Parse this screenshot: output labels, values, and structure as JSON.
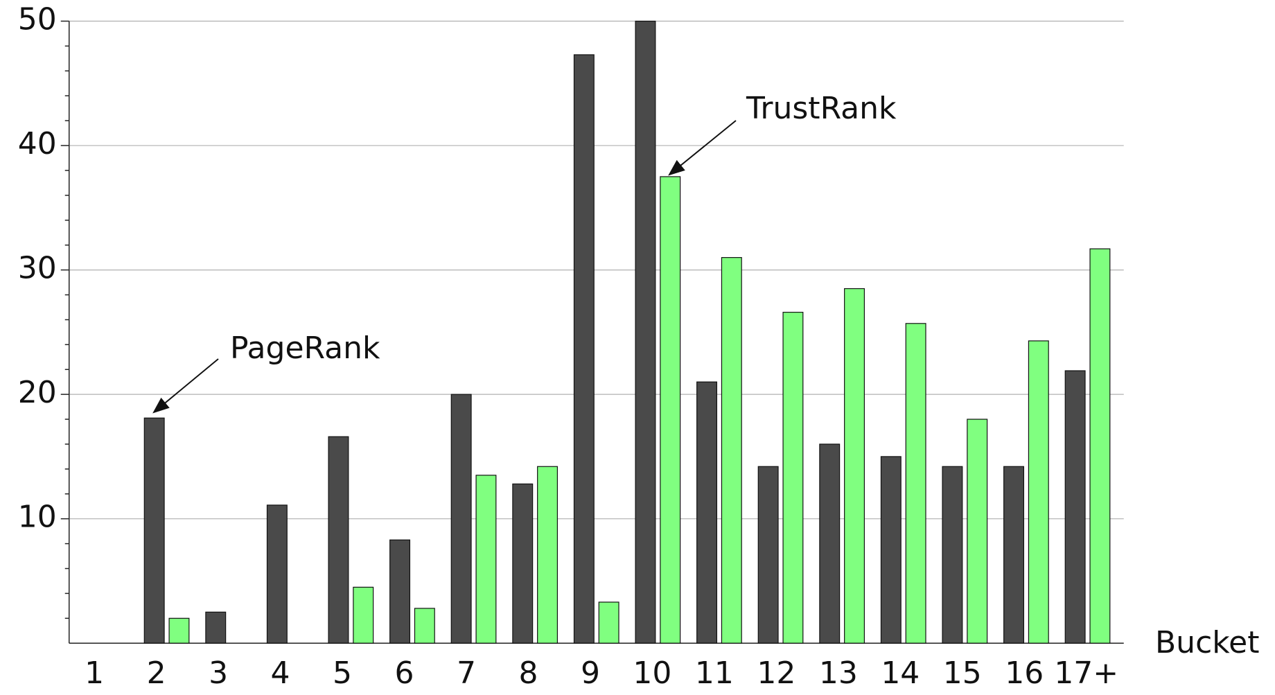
{
  "chart_data": {
    "type": "bar",
    "x_label": "Bucket",
    "categories": [
      "1",
      "2",
      "3",
      "4",
      "5",
      "6",
      "7",
      "8",
      "9",
      "10",
      "11",
      "12",
      "13",
      "14",
      "15",
      "16",
      "17+"
    ],
    "series": [
      {
        "name": "PageRank",
        "color": "#4a4a4a",
        "values": [
          0,
          18.1,
          2.5,
          11.1,
          16.6,
          8.3,
          20,
          12.8,
          47.3,
          50,
          21,
          14.2,
          16,
          15,
          14.2,
          14.2,
          21.9
        ]
      },
      {
        "name": "TrustRank",
        "color": "#80ff80",
        "values": [
          0,
          2.0,
          0,
          0,
          4.5,
          2.8,
          13.5,
          14.2,
          3.3,
          37.5,
          31,
          26.6,
          28.5,
          25.7,
          18,
          24.3,
          31.7
        ]
      }
    ],
    "ylim": [
      0,
      50
    ],
    "yticks": [
      10,
      20,
      30,
      40,
      50
    ],
    "grid": true
  }
}
